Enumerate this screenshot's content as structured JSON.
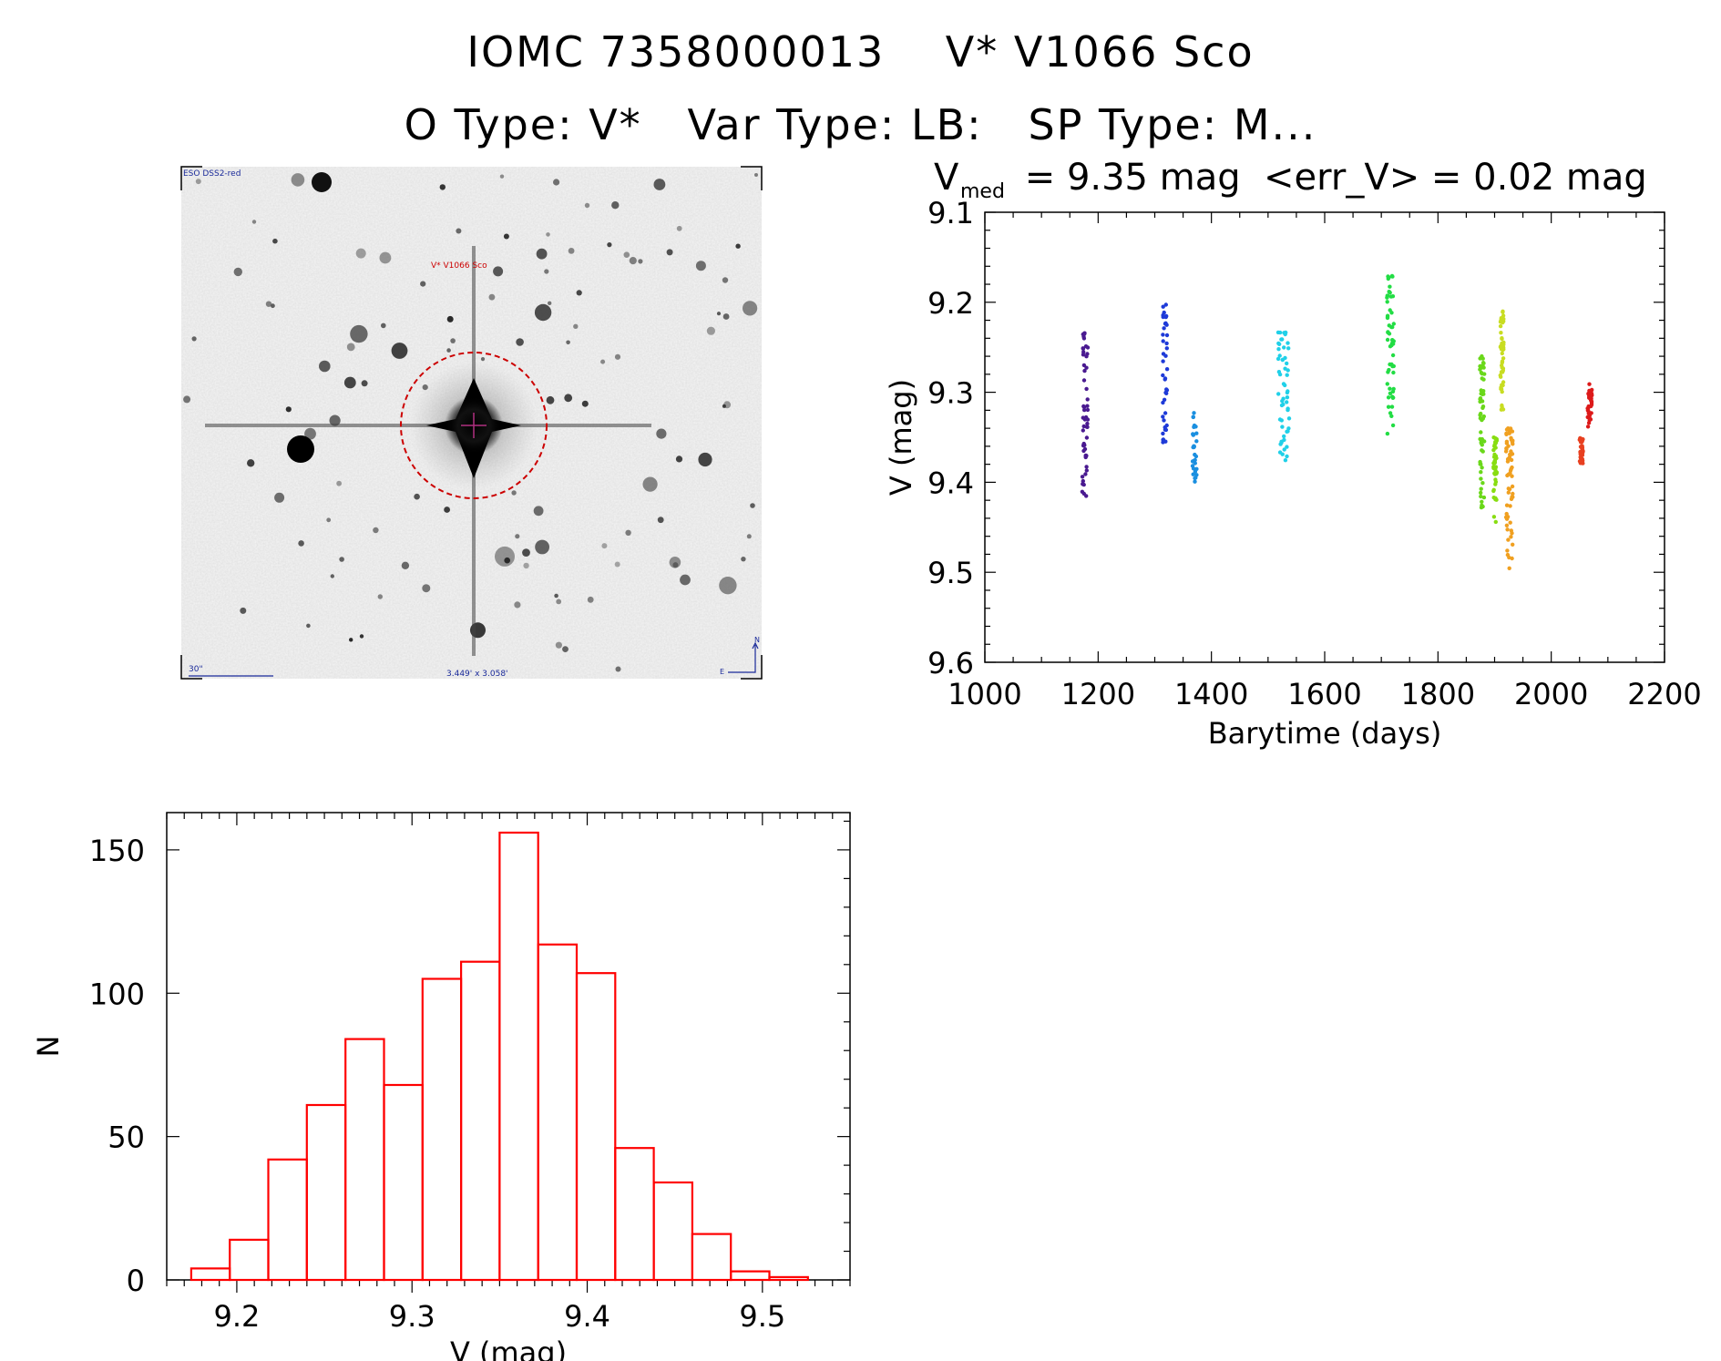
{
  "title_line1": "IOMC 7358000013    V* V1066 Sco",
  "title_line2": "O Type: V*   Var Type: LB:   SP Type: M...",
  "finder": {
    "survey_label": "ESO DSS2-red",
    "object_label": "V* V1066 Sco",
    "scale_label": "30\"",
    "fov_label": "3.449' x 3.058'",
    "north_label": "N",
    "east_label": "E",
    "colors": {
      "frame": "#000000",
      "circle": "#cc0000",
      "text_blue": "#1a2a9a",
      "text_red": "#cc0000"
    }
  },
  "lightcurve_title": {
    "v": "V",
    "sub": "med",
    "rest": " = 9.35 mag  <err_V> = 0.02 mag"
  },
  "chart_data": [
    {
      "type": "scatter",
      "xlabel": "Barytime (days)",
      "ylabel": "V (mag)",
      "xlim": [
        1000,
        2200
      ],
      "ylim": [
        9.6,
        9.1
      ],
      "y_inverted": true,
      "xticks": [
        "1000",
        "1200",
        "1400",
        "1600",
        "1800",
        "2000",
        "2200"
      ],
      "yticks": [
        "9.1",
        "9.2",
        "9.3",
        "9.4",
        "9.5",
        "9.6"
      ],
      "series": [
        {
          "color": "#4a1a90",
          "x_range": [
            1172,
            1182
          ],
          "y_range": [
            9.23,
            9.42
          ]
        },
        {
          "color": "#1e3ad8",
          "x_range": [
            1314,
            1322
          ],
          "y_range": [
            9.2,
            9.37
          ]
        },
        {
          "color": "#1a8fe0",
          "x_range": [
            1366,
            1374
          ],
          "y_range": [
            9.32,
            9.4
          ]
        },
        {
          "color": "#20d0e8",
          "x_range": [
            1518,
            1538
          ],
          "y_range": [
            9.23,
            9.38
          ]
        },
        {
          "color": "#22dd44",
          "x_range": [
            1710,
            1722
          ],
          "y_range": [
            9.17,
            9.36
          ]
        },
        {
          "color": "#6ad81a",
          "x_range": [
            1874,
            1882
          ],
          "y_range": [
            9.26,
            9.43
          ]
        },
        {
          "color": "#88dd11",
          "x_range": [
            1898,
            1904
          ],
          "y_range": [
            9.35,
            9.45
          ]
        },
        {
          "color": "#c8dd22",
          "x_range": [
            1910,
            1916
          ],
          "y_range": [
            9.21,
            9.32
          ]
        },
        {
          "color": "#f0a020",
          "x_range": [
            1920,
            1932
          ],
          "y_range": [
            9.34,
            9.5
          ]
        },
        {
          "color": "#e84020",
          "x_range": [
            2050,
            2056
          ],
          "y_range": [
            9.35,
            9.38
          ]
        },
        {
          "color": "#dd1a1a",
          "x_range": [
            2064,
            2072
          ],
          "y_range": [
            9.29,
            9.34
          ]
        }
      ]
    },
    {
      "type": "bar",
      "subtype": "histogram",
      "xlabel": "V (mag)",
      "ylabel": "N",
      "xlim": [
        9.16,
        9.55
      ],
      "ylim": [
        0,
        163
      ],
      "xticks": [
        "9.2",
        "9.3",
        "9.4",
        "9.5"
      ],
      "yticks": [
        "0",
        "50",
        "100",
        "150"
      ],
      "bar_color": "#ff0000",
      "bin_width": 0.022,
      "bin_edges_start": 9.174,
      "values": [
        4,
        14,
        42,
        61,
        84,
        68,
        105,
        111,
        156,
        117,
        107,
        46,
        34,
        16,
        3,
        1
      ]
    }
  ]
}
